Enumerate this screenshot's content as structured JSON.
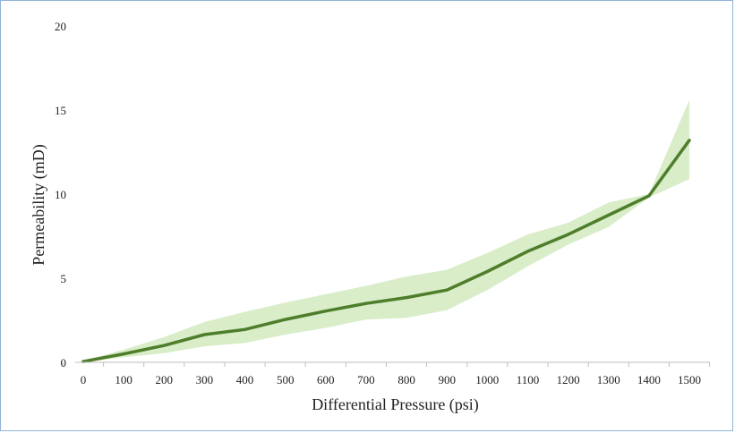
{
  "chart_data": {
    "type": "line",
    "title": "",
    "xlabel": "Differential Pressure (psi)",
    "ylabel": "Permeability (mD)",
    "xlim": [
      0,
      1500
    ],
    "ylim": [
      0,
      20
    ],
    "x_ticks": [
      "0",
      "100",
      "200",
      "300",
      "400",
      "500",
      "600",
      "700",
      "800",
      "900",
      "1000",
      "1100",
      "1200",
      "1300",
      "1400",
      "1500"
    ],
    "y_ticks": [
      "0",
      "5",
      "10",
      "15",
      "20"
    ],
    "grid": false,
    "legend": "none",
    "x": [
      0,
      100,
      200,
      300,
      400,
      500,
      600,
      700,
      800,
      900,
      1000,
      1100,
      1200,
      1300,
      1400,
      1500
    ],
    "series": [
      {
        "values": [
          0.05,
          0.5,
          1.0,
          1.65,
          1.95,
          2.55,
          3.05,
          3.5,
          3.85,
          4.3,
          5.4,
          6.6,
          7.6,
          8.75,
          9.9,
          13.2
        ],
        "upper": [
          0.1,
          0.75,
          1.5,
          2.4,
          3.0,
          3.55,
          4.05,
          4.55,
          5.1,
          5.5,
          6.5,
          7.6,
          8.3,
          9.5,
          10.0,
          15.6
        ],
        "lower": [
          0.0,
          0.3,
          0.55,
          0.95,
          1.15,
          1.65,
          2.05,
          2.55,
          2.65,
          3.1,
          4.3,
          5.7,
          7.0,
          8.05,
          9.8,
          10.9
        ],
        "color": "#4e7d2b",
        "band_color": "#d8edc8"
      }
    ]
  }
}
